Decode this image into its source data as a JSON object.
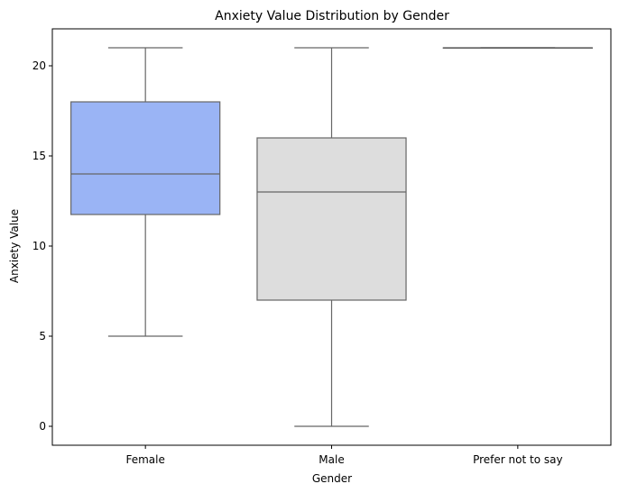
{
  "chart_data": {
    "type": "box",
    "title": "Anxiety Value Distribution by Gender",
    "xlabel": "Gender",
    "ylabel": "Anxiety Value",
    "ylim": [
      -1.05,
      22.05
    ],
    "yticks": [
      0,
      5,
      10,
      15,
      20
    ],
    "categories": [
      "Female",
      "Male",
      "Prefer not to say"
    ],
    "boxes": [
      {
        "category": "Female",
        "whisker_low": 5,
        "q1": 11.75,
        "median": 14,
        "q3": 18,
        "whisker_high": 21,
        "color": "#9ab4f5"
      },
      {
        "category": "Male",
        "whisker_low": 0,
        "q1": 7,
        "median": 13,
        "q3": 16,
        "whisker_high": 21,
        "color": "#dddddd"
      },
      {
        "category": "Prefer not to say",
        "whisker_low": 21,
        "q1": 21,
        "median": 21,
        "q3": 21,
        "whisker_high": 21,
        "color": "#e9c9b8"
      }
    ],
    "grid": false,
    "legend": "none"
  },
  "colors": {
    "line": "#666666",
    "axis": "#000000"
  }
}
